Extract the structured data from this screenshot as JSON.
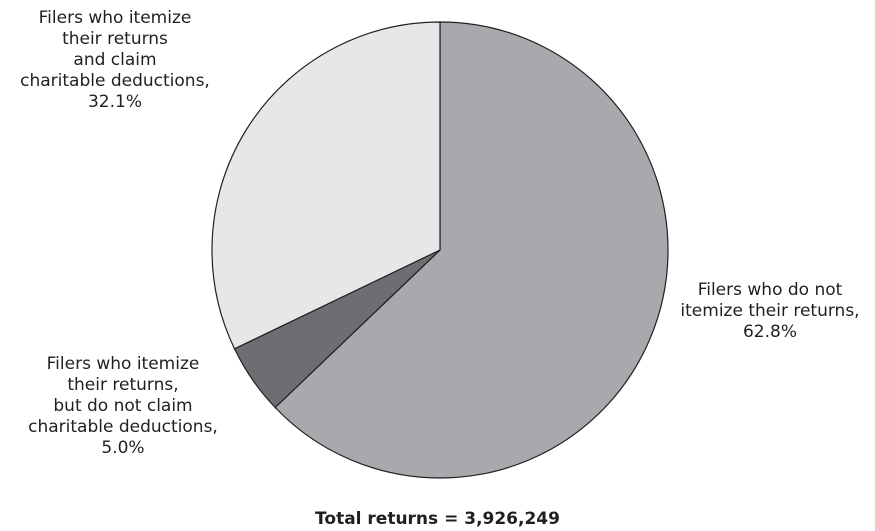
{
  "chart_data": {
    "type": "pie",
    "categories": [
      "Filers who do not\nitemize their returns,",
      "Filers who itemize\ntheir returns,\nbut do not claim\ncharitable deductions,",
      "Filers who itemize\ntheir returns\nand claim\ncharitable deductions,"
    ],
    "values": [
      62.8,
      5,
      32.1
    ],
    "value_labels": [
      "62.8%",
      "5.0%",
      "32.1%"
    ],
    "colors": [
      "#a7a9ac",
      "#6d6e71",
      "#e6e7e8"
    ],
    "total_label": "Total returns = 3,926,249"
  }
}
